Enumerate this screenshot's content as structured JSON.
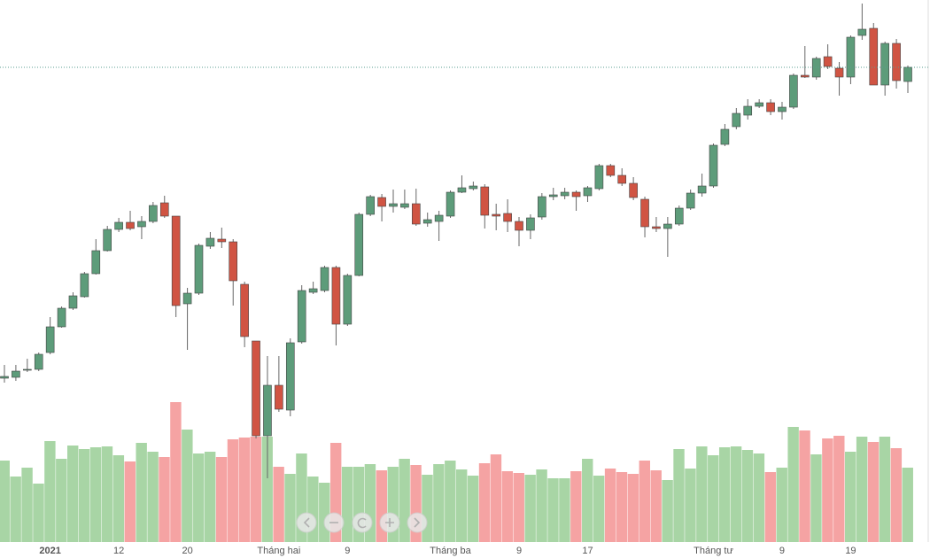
{
  "chart_data": {
    "type": "candlestick",
    "categories": [
      null,
      null,
      null,
      null,
      "2021",
      null,
      null,
      null,
      null,
      null,
      "12",
      null,
      null,
      null,
      null,
      null,
      "20",
      null,
      null,
      null,
      null,
      null,
      null,
      null,
      "Tháng hai",
      null,
      null,
      null,
      null,
      null,
      "9",
      null,
      null,
      null,
      null,
      null,
      null,
      null,
      null,
      "Tháng ba",
      null,
      null,
      null,
      null,
      null,
      "9",
      null,
      null,
      null,
      null,
      null,
      "17",
      null,
      null,
      null,
      null,
      null,
      null,
      null,
      null,
      null,
      null,
      "Tháng tư",
      null,
      null,
      null,
      null,
      null,
      "9",
      null,
      null,
      null,
      null,
      null,
      "19",
      null,
      null,
      null,
      null,
      null
    ],
    "open": [
      203,
      204,
      212,
      213,
      232,
      261,
      282,
      295,
      321,
      347,
      371,
      379,
      374,
      380,
      401,
      386,
      287,
      299,
      352,
      360,
      357,
      309,
      245,
      138,
      195,
      167,
      244,
      300,
      302,
      328,
      264,
      319,
      388,
      407,
      397,
      396,
      400,
      378,
      380,
      386,
      413,
      417,
      419,
      388,
      389,
      380,
      370,
      385,
      408,
      409,
      413,
      409,
      417,
      443,
      432,
      423,
      405,
      374,
      372,
      377,
      395,
      412,
      420,
      467,
      487,
      500,
      510,
      514,
      504,
      509,
      545,
      543,
      566,
      553,
      543,
      590,
      598,
      534,
      581,
      538
    ],
    "high": [
      218,
      218,
      225,
      232,
      272,
      284,
      300,
      323,
      360,
      375,
      384,
      392,
      386,
      402,
      409,
      386,
      305,
      355,
      368,
      373,
      360,
      312,
      245,
      228,
      228,
      248,
      308,
      312,
      330,
      330,
      321,
      390,
      410,
      411,
      416,
      416,
      417,
      390,
      392,
      415,
      432,
      425,
      422,
      400,
      405,
      385,
      388,
      412,
      418,
      418,
      415,
      420,
      445,
      445,
      440,
      430,
      408,
      385,
      385,
      398,
      416,
      434,
      468,
      490,
      508,
      518,
      518,
      518,
      515,
      547,
      578,
      566,
      580,
      560,
      590,
      626,
      604,
      583,
      586,
      556
    ],
    "low": [
      198,
      200,
      210,
      211,
      230,
      260,
      280,
      294,
      320,
      346,
      368,
      370,
      360,
      378,
      384,
      272,
      235,
      297,
      349,
      350,
      285,
      238,
      135,
      90,
      165,
      160,
      242,
      298,
      300,
      240,
      262,
      318,
      386,
      380,
      390,
      394,
      375,
      374,
      358,
      384,
      412,
      415,
      372,
      370,
      368,
      352,
      360,
      382,
      404,
      405,
      392,
      402,
      415,
      430,
      420,
      404,
      362,
      368,
      340,
      375,
      393,
      408,
      418,
      465,
      484,
      495,
      508,
      500,
      495,
      507,
      542,
      540,
      552,
      522,
      535,
      585,
      534,
      522,
      530,
      525
    ],
    "close": [
      205,
      211,
      213,
      230,
      261,
      282,
      296,
      321,
      347,
      371,
      379,
      372,
      380,
      398,
      386,
      285,
      299,
      353,
      361,
      357,
      313,
      250,
      138,
      195,
      168,
      243,
      302,
      304,
      328,
      264,
      319,
      388,
      408,
      397,
      400,
      400,
      377,
      382,
      387,
      413,
      418,
      420,
      387,
      386,
      380,
      370,
      384,
      408,
      410,
      413,
      408,
      418,
      443,
      432,
      423,
      407,
      374,
      372,
      377,
      395,
      412,
      420,
      466,
      484,
      502,
      510,
      514,
      504,
      509,
      545,
      543,
      564,
      555,
      543,
      588,
      597,
      534,
      581,
      539,
      554
    ],
    "volume": [
      92,
      74,
      84,
      66,
      114,
      94,
      109,
      105,
      107,
      108,
      98,
      91,
      112,
      102,
      96,
      158,
      127,
      100,
      102,
      96,
      116,
      118,
      119,
      119,
      85,
      77,
      100,
      74,
      67,
      112,
      85,
      85,
      88,
      81,
      85,
      94,
      87,
      76,
      88,
      92,
      82,
      75,
      89,
      99,
      80,
      78,
      76,
      82,
      72,
      72,
      80,
      94,
      75,
      83,
      79,
      77,
      92,
      81,
      70,
      105,
      83,
      108,
      98,
      107,
      108,
      104,
      100,
      79,
      84,
      130,
      126,
      99,
      117,
      120,
      102,
      119,
      113,
      119,
      106,
      84
    ],
    "ylim": [
      0,
      630
    ],
    "y2lim": [
      0,
      630
    ],
    "up_color": "#5d9c7a",
    "down_color": "#d05443",
    "volume_up_color": "#a8d5a5",
    "volume_down_color": "#f5a3a3"
  }
}
